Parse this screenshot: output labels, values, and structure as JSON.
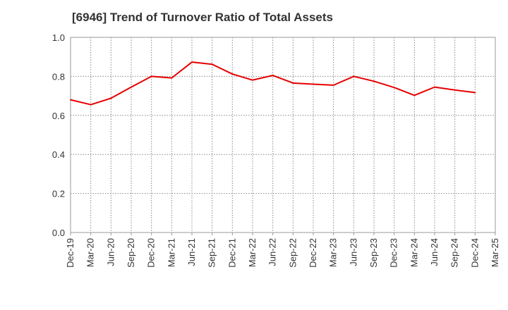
{
  "chart_data": {
    "type": "line",
    "title": "[6946]  Trend of Turnover Ratio of Total Assets",
    "xlabel": "",
    "ylabel": "",
    "ylim": [
      0,
      1.0
    ],
    "yticks": [
      "0.0",
      "0.2",
      "0.4",
      "0.6",
      "0.8",
      "1.0"
    ],
    "categories": [
      "Dec-19",
      "Mar-20",
      "Jun-20",
      "Sep-20",
      "Dec-20",
      "Mar-21",
      "Jun-21",
      "Sep-21",
      "Dec-21",
      "Mar-22",
      "Jun-22",
      "Sep-22",
      "Dec-22",
      "Mar-23",
      "Jun-23",
      "Sep-23",
      "Dec-23",
      "Mar-24",
      "Jun-24",
      "Sep-24",
      "Dec-24",
      "Mar-25"
    ],
    "series": [
      {
        "name": "",
        "color": "#e60000",
        "values": [
          0.68,
          0.655,
          0.688,
          0.745,
          0.8,
          0.792,
          0.873,
          0.862,
          0.812,
          0.781,
          0.805,
          0.766,
          0.76,
          0.755,
          0.8,
          0.775,
          0.743,
          0.703,
          0.745,
          0.73,
          0.717,
          null
        ]
      }
    ],
    "grid": true,
    "grid_style": "dotted",
    "legend": "none"
  }
}
